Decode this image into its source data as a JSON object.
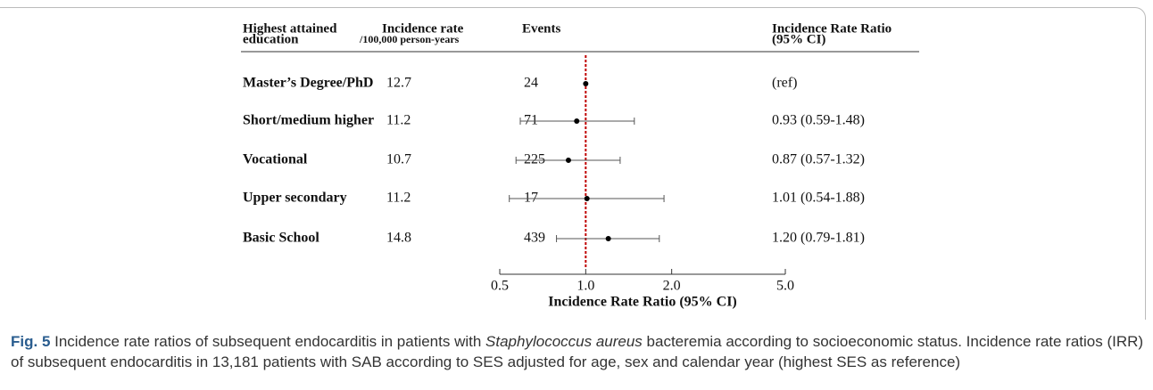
{
  "chart_data": {
    "type": "forest",
    "headers": [
      [
        "Highest attained",
        "education"
      ],
      [
        "Incidence rate",
        "/100,000 person-years"
      ],
      [
        "Events"
      ],
      [
        "Incidence Rate Ratio",
        "(95% CI)"
      ]
    ],
    "categories": [
      "Master’s Degree/PhD",
      "Short/medium higher",
      "Vocational",
      "Upper secondary",
      "Basic School"
    ],
    "rates": [
      "12.7",
      "11.2",
      "10.7",
      "11.2",
      "14.8"
    ],
    "events": [
      "24",
      "71",
      "225",
      "17",
      "439"
    ],
    "estimates": [
      1,
      0.93,
      0.87,
      1.01,
      1.2
    ],
    "lower": [
      null,
      0.59,
      0.57,
      0.54,
      0.79
    ],
    "upper": [
      null,
      1.48,
      1.32,
      1.88,
      1.81
    ],
    "value_labels": [
      "(ref)",
      "0.93 (0.59-1.48)",
      "0.87 (0.57-1.32)",
      "1.01 (0.54-1.88)",
      "1.20 (0.79-1.81)"
    ],
    "xlim": [
      0.5,
      5
    ],
    "xticks": [
      0.5,
      {
        "value": 1,
        "label": "1.0"
      },
      {
        "value": 2,
        "label": "2.0"
      },
      {
        "value": 5,
        "label": "5.0"
      }
    ],
    "xlabel": "Incidence Rate Ratio (95% CI)",
    "log_x": true,
    "reference_line": 1,
    "reference_color": "#c00000",
    "color": "#000000"
  },
  "caption": {
    "label": "Fig. 5",
    "text_before": " Incidence rate ratios of subsequent endocarditis in patients with ",
    "italic": "Staphylococcus aureus",
    "text_after": " bacteremia according to socioeconomic status. Incidence rate ratios (IRR) of subsequent endocarditis in 13,181 patients with SAB according to SES adjusted for age, sex and calendar year (highest SES as reference)"
  }
}
